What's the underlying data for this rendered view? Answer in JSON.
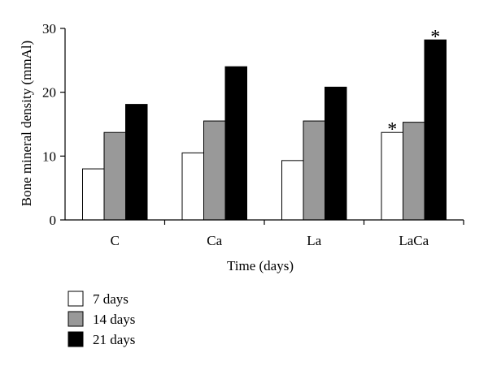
{
  "chart_data": {
    "type": "bar",
    "categories": [
      "C",
      "Ca",
      "La",
      "LaCa"
    ],
    "series": [
      {
        "name": "7 days",
        "values": [
          8.0,
          10.5,
          9.3,
          13.7
        ],
        "color": "#ffffff"
      },
      {
        "name": "14 days",
        "values": [
          13.7,
          15.5,
          15.5,
          15.3
        ],
        "color": "#999999"
      },
      {
        "name": "21 days",
        "values": [
          18.1,
          24.0,
          20.8,
          28.2
        ],
        "color": "#000000"
      }
    ],
    "annotations": [
      {
        "text": "*",
        "category": "LaCa",
        "series": "7 days"
      },
      {
        "text": "*",
        "category": "LaCa",
        "series": "21 days"
      }
    ],
    "xlabel": "Time (days)",
    "ylabel": "Bone mineral density (mmAl)",
    "ylim": [
      0,
      30
    ],
    "yticks": [
      0,
      10,
      20,
      30
    ],
    "grid": false,
    "legend_position": "bottom-left"
  }
}
